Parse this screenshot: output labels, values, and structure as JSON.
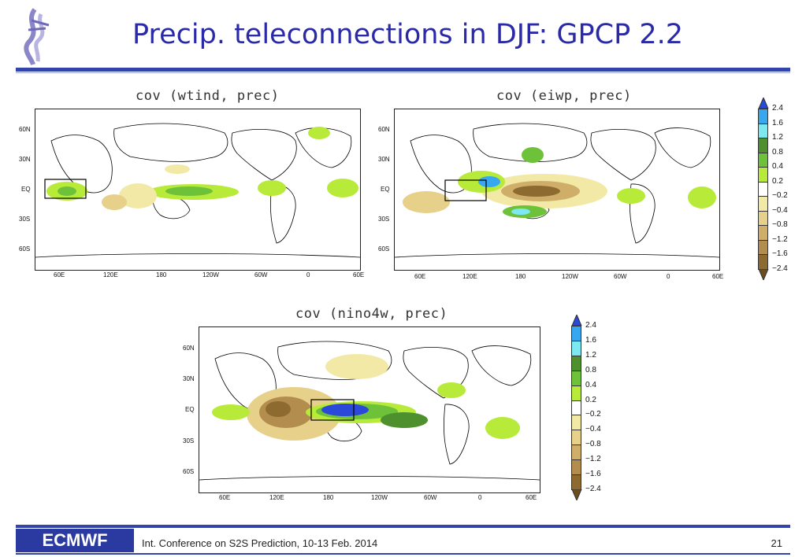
{
  "slide": {
    "title": "Precip. teleconnections in DJF: GPCP 2.2",
    "footer_text": "Int. Conference on S2S Prediction, 10-13 Feb. 2014",
    "page_number": "21",
    "footer_logo": "ECMWF"
  },
  "colors": {
    "title": "#2a2aa8",
    "rule": "#3344aa"
  },
  "panels": [
    {
      "title": "cov (wtind, prec)"
    },
    {
      "title": "cov (eiwp, prec)"
    },
    {
      "title": "cov (nino4w, prec)"
    }
  ],
  "axes": {
    "lat_labels": [
      "60N",
      "30N",
      "EQ",
      "30S",
      "60S"
    ],
    "lon_labels": [
      "60E",
      "120E",
      "180",
      "120W",
      "60W",
      "0",
      "60E"
    ]
  },
  "colorbar": {
    "levels": [
      "2.4",
      "1.6",
      "1.2",
      "0.8",
      "0.4",
      "0.2",
      "−0.2",
      "−0.4",
      "−0.8",
      "−1.2",
      "−1.6",
      "−2.4"
    ],
    "colors": [
      "#2a49d8",
      "#37a8f0",
      "#7ee8f0",
      "#4e8f2e",
      "#6ec23a",
      "#b8ea3a",
      "#ffffff",
      "#f3e9a6",
      "#e6d08a",
      "#cfae6a",
      "#b38d4e",
      "#8d6a30",
      "#6c4e1c"
    ]
  }
}
